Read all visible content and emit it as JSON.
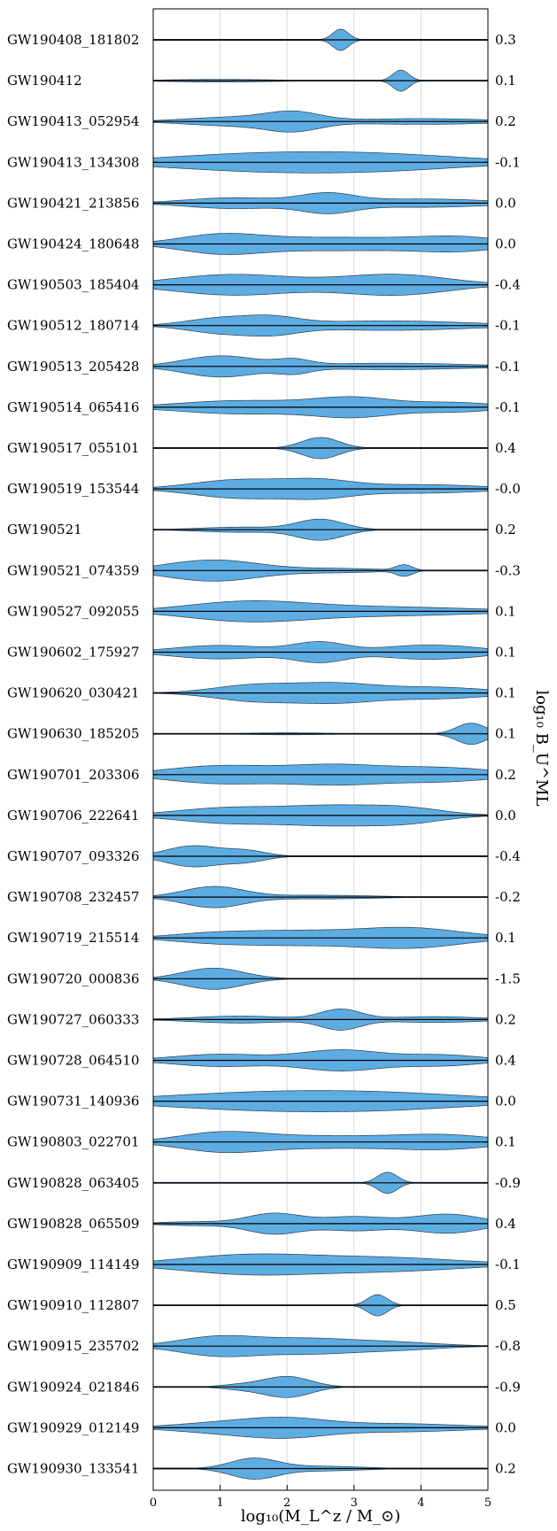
{
  "chart_data": {
    "type": "violin",
    "xlabel": "log₁₀(M_L^z / M_⊙)",
    "ylabel_right": "log₁₀ B_U^ML",
    "xlim": [
      0,
      5
    ],
    "xticks": [
      "0",
      "1",
      "2",
      "3",
      "4",
      "5"
    ],
    "grid": "vertical",
    "fill_color": "#5dade2",
    "events": [
      {
        "name": "GW190408_181802",
        "bayes_factor": "0.3",
        "peaks": [
          [
            2.8,
            0.12,
            0.9
          ]
        ]
      },
      {
        "name": "GW190412",
        "bayes_factor": "0.1",
        "peaks": [
          [
            3.7,
            0.12,
            0.85
          ],
          [
            1.0,
            0.8,
            0.1
          ]
        ]
      },
      {
        "name": "GW190413_052954",
        "bayes_factor": "0.2",
        "peaks": [
          [
            2.1,
            0.4,
            0.85
          ],
          [
            1.2,
            0.7,
            0.45
          ],
          [
            4.0,
            1.0,
            0.3
          ]
        ]
      },
      {
        "name": "GW190413_134308",
        "bayes_factor": "-0.1",
        "peaks": [
          [
            1.5,
            1.4,
            0.6
          ],
          [
            3.5,
            1.3,
            0.5
          ]
        ]
      },
      {
        "name": "GW190421_213856",
        "bayes_factor": "0.0",
        "peaks": [
          [
            2.6,
            0.4,
            0.7
          ],
          [
            1.2,
            0.7,
            0.45
          ],
          [
            4.0,
            1.0,
            0.35
          ]
        ]
      },
      {
        "name": "GW190424_180648",
        "bayes_factor": "0.0",
        "peaks": [
          [
            1.0,
            0.6,
            0.6
          ],
          [
            2.8,
            1.3,
            0.5
          ],
          [
            4.6,
            0.6,
            0.4
          ]
        ]
      },
      {
        "name": "GW190503_185404",
        "bayes_factor": "-0.4",
        "peaks": [
          [
            1.2,
            0.9,
            0.7
          ],
          [
            3.6,
            0.8,
            0.7
          ]
        ]
      },
      {
        "name": "GW190512_180714",
        "bayes_factor": "-0.1",
        "peaks": [
          [
            1.0,
            0.5,
            0.6
          ],
          [
            1.8,
            0.4,
            0.55
          ],
          [
            3.5,
            1.2,
            0.4
          ]
        ]
      },
      {
        "name": "GW190513_205428",
        "bayes_factor": "-0.1",
        "peaks": [
          [
            1.0,
            0.55,
            0.8
          ],
          [
            2.1,
            0.25,
            0.4
          ],
          [
            3.5,
            1.2,
            0.25
          ]
        ]
      },
      {
        "name": "GW190514_065416",
        "bayes_factor": "-0.1",
        "peaks": [
          [
            3.0,
            0.6,
            0.7
          ],
          [
            1.3,
            0.9,
            0.5
          ],
          [
            4.5,
            0.6,
            0.35
          ]
        ]
      },
      {
        "name": "GW190517_055101",
        "bayes_factor": "0.4",
        "peaks": [
          [
            2.5,
            0.28,
            0.9
          ]
        ]
      },
      {
        "name": "GW190519_153544",
        "bayes_factor": "-0.0",
        "peaks": [
          [
            1.3,
            0.7,
            0.65
          ],
          [
            2.5,
            0.5,
            0.5
          ],
          [
            4.0,
            0.9,
            0.3
          ]
        ]
      },
      {
        "name": "GW190521",
        "bayes_factor": "0.2",
        "peaks": [
          [
            2.5,
            0.35,
            0.8
          ],
          [
            1.3,
            0.6,
            0.2
          ]
        ]
      },
      {
        "name": "GW190521_074359",
        "bayes_factor": "-0.3",
        "peaks": [
          [
            0.9,
            0.7,
            0.8
          ],
          [
            3.75,
            0.12,
            0.4
          ],
          [
            2.8,
            0.6,
            0.15
          ]
        ]
      },
      {
        "name": "GW190527_092055",
        "bayes_factor": "0.1",
        "peaks": [
          [
            1.4,
            0.9,
            0.65
          ],
          [
            3.5,
            1.3,
            0.3
          ]
        ]
      },
      {
        "name": "GW190602_175927",
        "bayes_factor": "0.1",
        "peaks": [
          [
            2.5,
            0.4,
            0.65
          ],
          [
            1.0,
            0.7,
            0.45
          ],
          [
            3.8,
            0.5,
            0.35
          ],
          [
            4.6,
            0.5,
            0.3
          ]
        ]
      },
      {
        "name": "GW190620_030421",
        "bayes_factor": "0.1",
        "peaks": [
          [
            1.5,
            0.6,
            0.55
          ],
          [
            2.7,
            0.6,
            0.6
          ],
          [
            4.2,
            0.8,
            0.4
          ]
        ]
      },
      {
        "name": "GW190630_185205",
        "bayes_factor": "0.1",
        "peaks": [
          [
            4.75,
            0.22,
            0.9
          ],
          [
            2.0,
            0.7,
            0.08
          ]
        ]
      },
      {
        "name": "GW190701_203306",
        "bayes_factor": "0.2",
        "peaks": [
          [
            1.0,
            0.8,
            0.7
          ],
          [
            2.7,
            0.7,
            0.7
          ],
          [
            4.3,
            0.8,
            0.55
          ]
        ]
      },
      {
        "name": "GW190706_222641",
        "bayes_factor": "0.0",
        "peaks": [
          [
            1.2,
            0.8,
            0.55
          ],
          [
            2.6,
            0.6,
            0.5
          ],
          [
            3.7,
            0.6,
            0.55
          ]
        ]
      },
      {
        "name": "GW190707_093326",
        "bayes_factor": "-0.4",
        "peaks": [
          [
            0.6,
            0.4,
            0.9
          ],
          [
            1.4,
            0.3,
            0.45
          ]
        ]
      },
      {
        "name": "GW190708_232457",
        "bayes_factor": "-0.2",
        "peaks": [
          [
            0.9,
            0.45,
            0.85
          ],
          [
            2.5,
            0.8,
            0.15
          ]
        ]
      },
      {
        "name": "GW190719_215514",
        "bayes_factor": "0.1",
        "peaks": [
          [
            3.8,
            0.8,
            0.7
          ],
          [
            2.0,
            0.8,
            0.45
          ],
          [
            0.8,
            0.6,
            0.25
          ]
        ]
      },
      {
        "name": "GW190720_000836",
        "bayes_factor": "-1.5",
        "peaks": [
          [
            0.9,
            0.45,
            0.9
          ]
        ]
      },
      {
        "name": "GW190727_060333",
        "bayes_factor": "0.2",
        "peaks": [
          [
            2.8,
            0.3,
            0.85
          ],
          [
            1.3,
            0.7,
            0.3
          ],
          [
            4.2,
            0.7,
            0.25
          ]
        ]
      },
      {
        "name": "GW190728_064510",
        "bayes_factor": "0.4",
        "peaks": [
          [
            2.8,
            0.6,
            0.75
          ],
          [
            1.0,
            0.7,
            0.45
          ],
          [
            4.3,
            0.6,
            0.4
          ]
        ]
      },
      {
        "name": "GW190731_140936",
        "bayes_factor": "0.0",
        "peaks": [
          [
            1.5,
            1.5,
            0.65
          ],
          [
            3.6,
            1.4,
            0.55
          ]
        ]
      },
      {
        "name": "GW190803_022701",
        "bayes_factor": "0.1",
        "peaks": [
          [
            1.0,
            0.6,
            0.6
          ],
          [
            2.5,
            1.3,
            0.5
          ],
          [
            4.4,
            0.7,
            0.45
          ]
        ]
      },
      {
        "name": "GW190828_063405",
        "bayes_factor": "-0.9",
        "peaks": [
          [
            3.5,
            0.15,
            0.85
          ]
        ]
      },
      {
        "name": "GW190828_065509",
        "bayes_factor": "0.4",
        "peaks": [
          [
            1.8,
            0.4,
            0.8
          ],
          [
            3.0,
            0.5,
            0.55
          ],
          [
            4.4,
            0.5,
            0.75
          ],
          [
            0.6,
            0.5,
            0.15
          ]
        ]
      },
      {
        "name": "GW190909_114149",
        "bayes_factor": "-0.1",
        "peaks": [
          [
            1.4,
            1.0,
            0.65
          ],
          [
            3.5,
            1.1,
            0.45
          ]
        ]
      },
      {
        "name": "GW190910_112807",
        "bayes_factor": "0.5",
        "peaks": [
          [
            3.35,
            0.15,
            0.9
          ]
        ]
      },
      {
        "name": "GW190915_235702",
        "bayes_factor": "-0.8",
        "peaks": [
          [
            1.0,
            0.6,
            0.7
          ],
          [
            2.3,
            0.6,
            0.45
          ],
          [
            3.5,
            0.7,
            0.3
          ]
        ]
      },
      {
        "name": "GW190924_021846",
        "bayes_factor": "-0.9",
        "peaks": [
          [
            2.0,
            0.35,
            0.95
          ],
          [
            1.3,
            0.3,
            0.2
          ]
        ]
      },
      {
        "name": "GW190929_012149",
        "bayes_factor": "0.0",
        "peaks": [
          [
            2.0,
            0.6,
            0.65
          ],
          [
            1.0,
            0.7,
            0.4
          ],
          [
            3.6,
            1.0,
            0.35
          ]
        ]
      },
      {
        "name": "GW190930_133541",
        "bayes_factor": "0.2",
        "peaks": [
          [
            1.5,
            0.35,
            0.85
          ],
          [
            2.5,
            0.6,
            0.2
          ]
        ]
      }
    ]
  }
}
